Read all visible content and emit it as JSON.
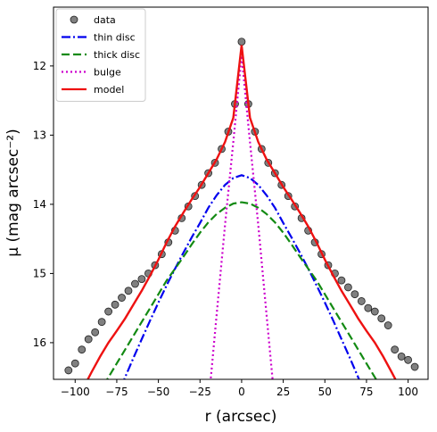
{
  "chart_data": {
    "type": "line",
    "xlabel": "r (arcsec)",
    "ylabel": "μ (mag arcsec⁻²)",
    "xlim": [
      -113,
      112
    ],
    "ylim": [
      11.15,
      16.53
    ],
    "y_inverted": true,
    "xticks": [
      {
        "value": -100,
        "label": "−100"
      },
      {
        "value": -75,
        "label": "−75"
      },
      {
        "value": -50,
        "label": "−50"
      },
      {
        "value": -25,
        "label": "−25"
      },
      0,
      25,
      50,
      75,
      100
    ],
    "yticks": [
      12,
      13,
      14,
      15,
      16
    ],
    "legend": "upper left",
    "series": [
      {
        "name": "data",
        "style": "marker",
        "color": "#808080",
        "x": [
          -104,
          -100,
          -96,
          -92,
          -88,
          -84,
          -80,
          -76,
          -72,
          -68,
          -64,
          -60,
          -56,
          -52,
          -48,
          -44,
          -40,
          -36,
          -32,
          -28,
          -24,
          -20,
          -16,
          -12,
          -8,
          -4,
          0,
          4,
          8,
          12,
          16,
          20,
          24,
          28,
          32,
          36,
          40,
          44,
          48,
          52,
          56,
          60,
          64,
          68,
          72,
          76,
          80,
          84,
          88,
          92,
          96,
          100,
          104
        ],
        "values": [
          16.4,
          16.3,
          16.1,
          15.95,
          15.85,
          15.7,
          15.55,
          15.45,
          15.35,
          15.25,
          15.15,
          15.08,
          15.0,
          14.88,
          14.72,
          14.55,
          14.38,
          14.2,
          14.03,
          13.88,
          13.72,
          13.55,
          13.4,
          13.2,
          12.95,
          12.55,
          11.65,
          12.55,
          12.95,
          13.2,
          13.4,
          13.55,
          13.72,
          13.88,
          14.03,
          14.2,
          14.38,
          14.55,
          14.72,
          14.88,
          15.0,
          15.1,
          15.2,
          15.3,
          15.4,
          15.5,
          15.55,
          15.65,
          15.75,
          16.1,
          16.2,
          16.25,
          16.35
        ]
      },
      {
        "name": "thin disc",
        "style": "dashdot",
        "color": "#0000ee",
        "x": [
          -110,
          -105,
          -100,
          -95,
          -90,
          -85,
          -80,
          -75,
          -70,
          -65,
          -60,
          -55,
          -50,
          -45,
          -40,
          -35,
          -30,
          -25,
          -20,
          -15,
          -10,
          -5,
          0,
          5,
          10,
          15,
          20,
          25,
          30,
          35,
          40,
          45,
          50,
          55,
          60,
          65,
          70,
          75,
          80,
          85,
          90,
          95,
          100,
          105,
          110
        ],
        "values": [
          null,
          null,
          null,
          null,
          null,
          null,
          17.06,
          16.78,
          16.5,
          16.22,
          15.95,
          15.68,
          15.42,
          15.17,
          14.93,
          14.7,
          14.48,
          14.27,
          14.05,
          13.87,
          13.72,
          13.62,
          13.58,
          13.62,
          13.72,
          13.87,
          14.05,
          14.27,
          14.48,
          14.7,
          14.93,
          15.17,
          15.42,
          15.68,
          15.95,
          16.22,
          16.5,
          16.78,
          17.06,
          null,
          null,
          null,
          null,
          null,
          null
        ]
      },
      {
        "name": "thick disc",
        "style": "dashed",
        "color": "#138a13",
        "x": [
          -110,
          -105,
          -100,
          -95,
          -90,
          -85,
          -80,
          -75,
          -70,
          -65,
          -60,
          -55,
          -50,
          -45,
          -40,
          -35,
          -30,
          -25,
          -20,
          -15,
          -10,
          -5,
          0,
          5,
          10,
          15,
          20,
          25,
          30,
          35,
          40,
          45,
          50,
          55,
          60,
          65,
          70,
          75,
          80,
          85,
          90,
          95,
          100,
          105,
          110
        ],
        "values": [
          null,
          null,
          null,
          null,
          16.9,
          16.7,
          16.5,
          16.3,
          16.1,
          15.9,
          15.7,
          15.5,
          15.3,
          15.1,
          14.93,
          14.76,
          14.58,
          14.41,
          14.26,
          14.14,
          14.05,
          13.99,
          13.97,
          13.99,
          14.05,
          14.14,
          14.26,
          14.41,
          14.58,
          14.76,
          14.93,
          15.1,
          15.3,
          15.5,
          15.7,
          15.9,
          16.1,
          16.3,
          16.5,
          16.7,
          16.9,
          null,
          null,
          null,
          null
        ]
      },
      {
        "name": "bulge",
        "style": "dotted",
        "color": "#cc00cc",
        "x": [
          -110,
          -105,
          -100,
          -95,
          -90,
          -85,
          -80,
          -75,
          -70,
          -65,
          -60,
          -55,
          -50,
          -45,
          -40,
          -35,
          -30,
          -25,
          -20,
          -15,
          -10,
          -5,
          0,
          5,
          10,
          15,
          20,
          25,
          30,
          35,
          40,
          45,
          50,
          55,
          60,
          65,
          70,
          75,
          80,
          85,
          90,
          95,
          100,
          105,
          110
        ],
        "values": [
          null,
          null,
          null,
          null,
          null,
          null,
          null,
          null,
          null,
          null,
          null,
          null,
          null,
          null,
          null,
          null,
          null,
          null,
          16.9,
          15.6,
          14.3,
          13.1,
          11.85,
          13.1,
          14.3,
          15.6,
          16.9,
          null,
          null,
          null,
          null,
          null,
          null,
          null,
          null,
          null,
          null,
          null,
          null,
          null,
          null,
          null,
          null,
          null,
          null
        ]
      },
      {
        "name": "model",
        "style": "solid",
        "color": "#ee1111",
        "x": [
          -110,
          -105,
          -100,
          -95,
          -90,
          -85,
          -80,
          -75,
          -70,
          -65,
          -60,
          -55,
          -50,
          -45,
          -40,
          -35,
          -30,
          -25,
          -20,
          -15,
          -10,
          -5,
          0,
          5,
          10,
          15,
          20,
          25,
          30,
          35,
          40,
          45,
          50,
          55,
          60,
          65,
          70,
          75,
          80,
          85,
          90,
          95,
          100,
          105,
          110
        ],
        "values": [
          null,
          null,
          16.88,
          16.65,
          16.42,
          16.2,
          16.0,
          15.83,
          15.65,
          15.45,
          15.25,
          15.03,
          14.8,
          14.55,
          14.32,
          14.12,
          13.93,
          13.75,
          13.55,
          13.35,
          13.1,
          12.75,
          11.7,
          12.75,
          13.1,
          13.35,
          13.55,
          13.75,
          13.93,
          14.12,
          14.32,
          14.55,
          14.8,
          15.03,
          15.25,
          15.45,
          15.65,
          15.83,
          16.0,
          16.2,
          16.42,
          16.65,
          16.88,
          null,
          null
        ]
      }
    ]
  }
}
